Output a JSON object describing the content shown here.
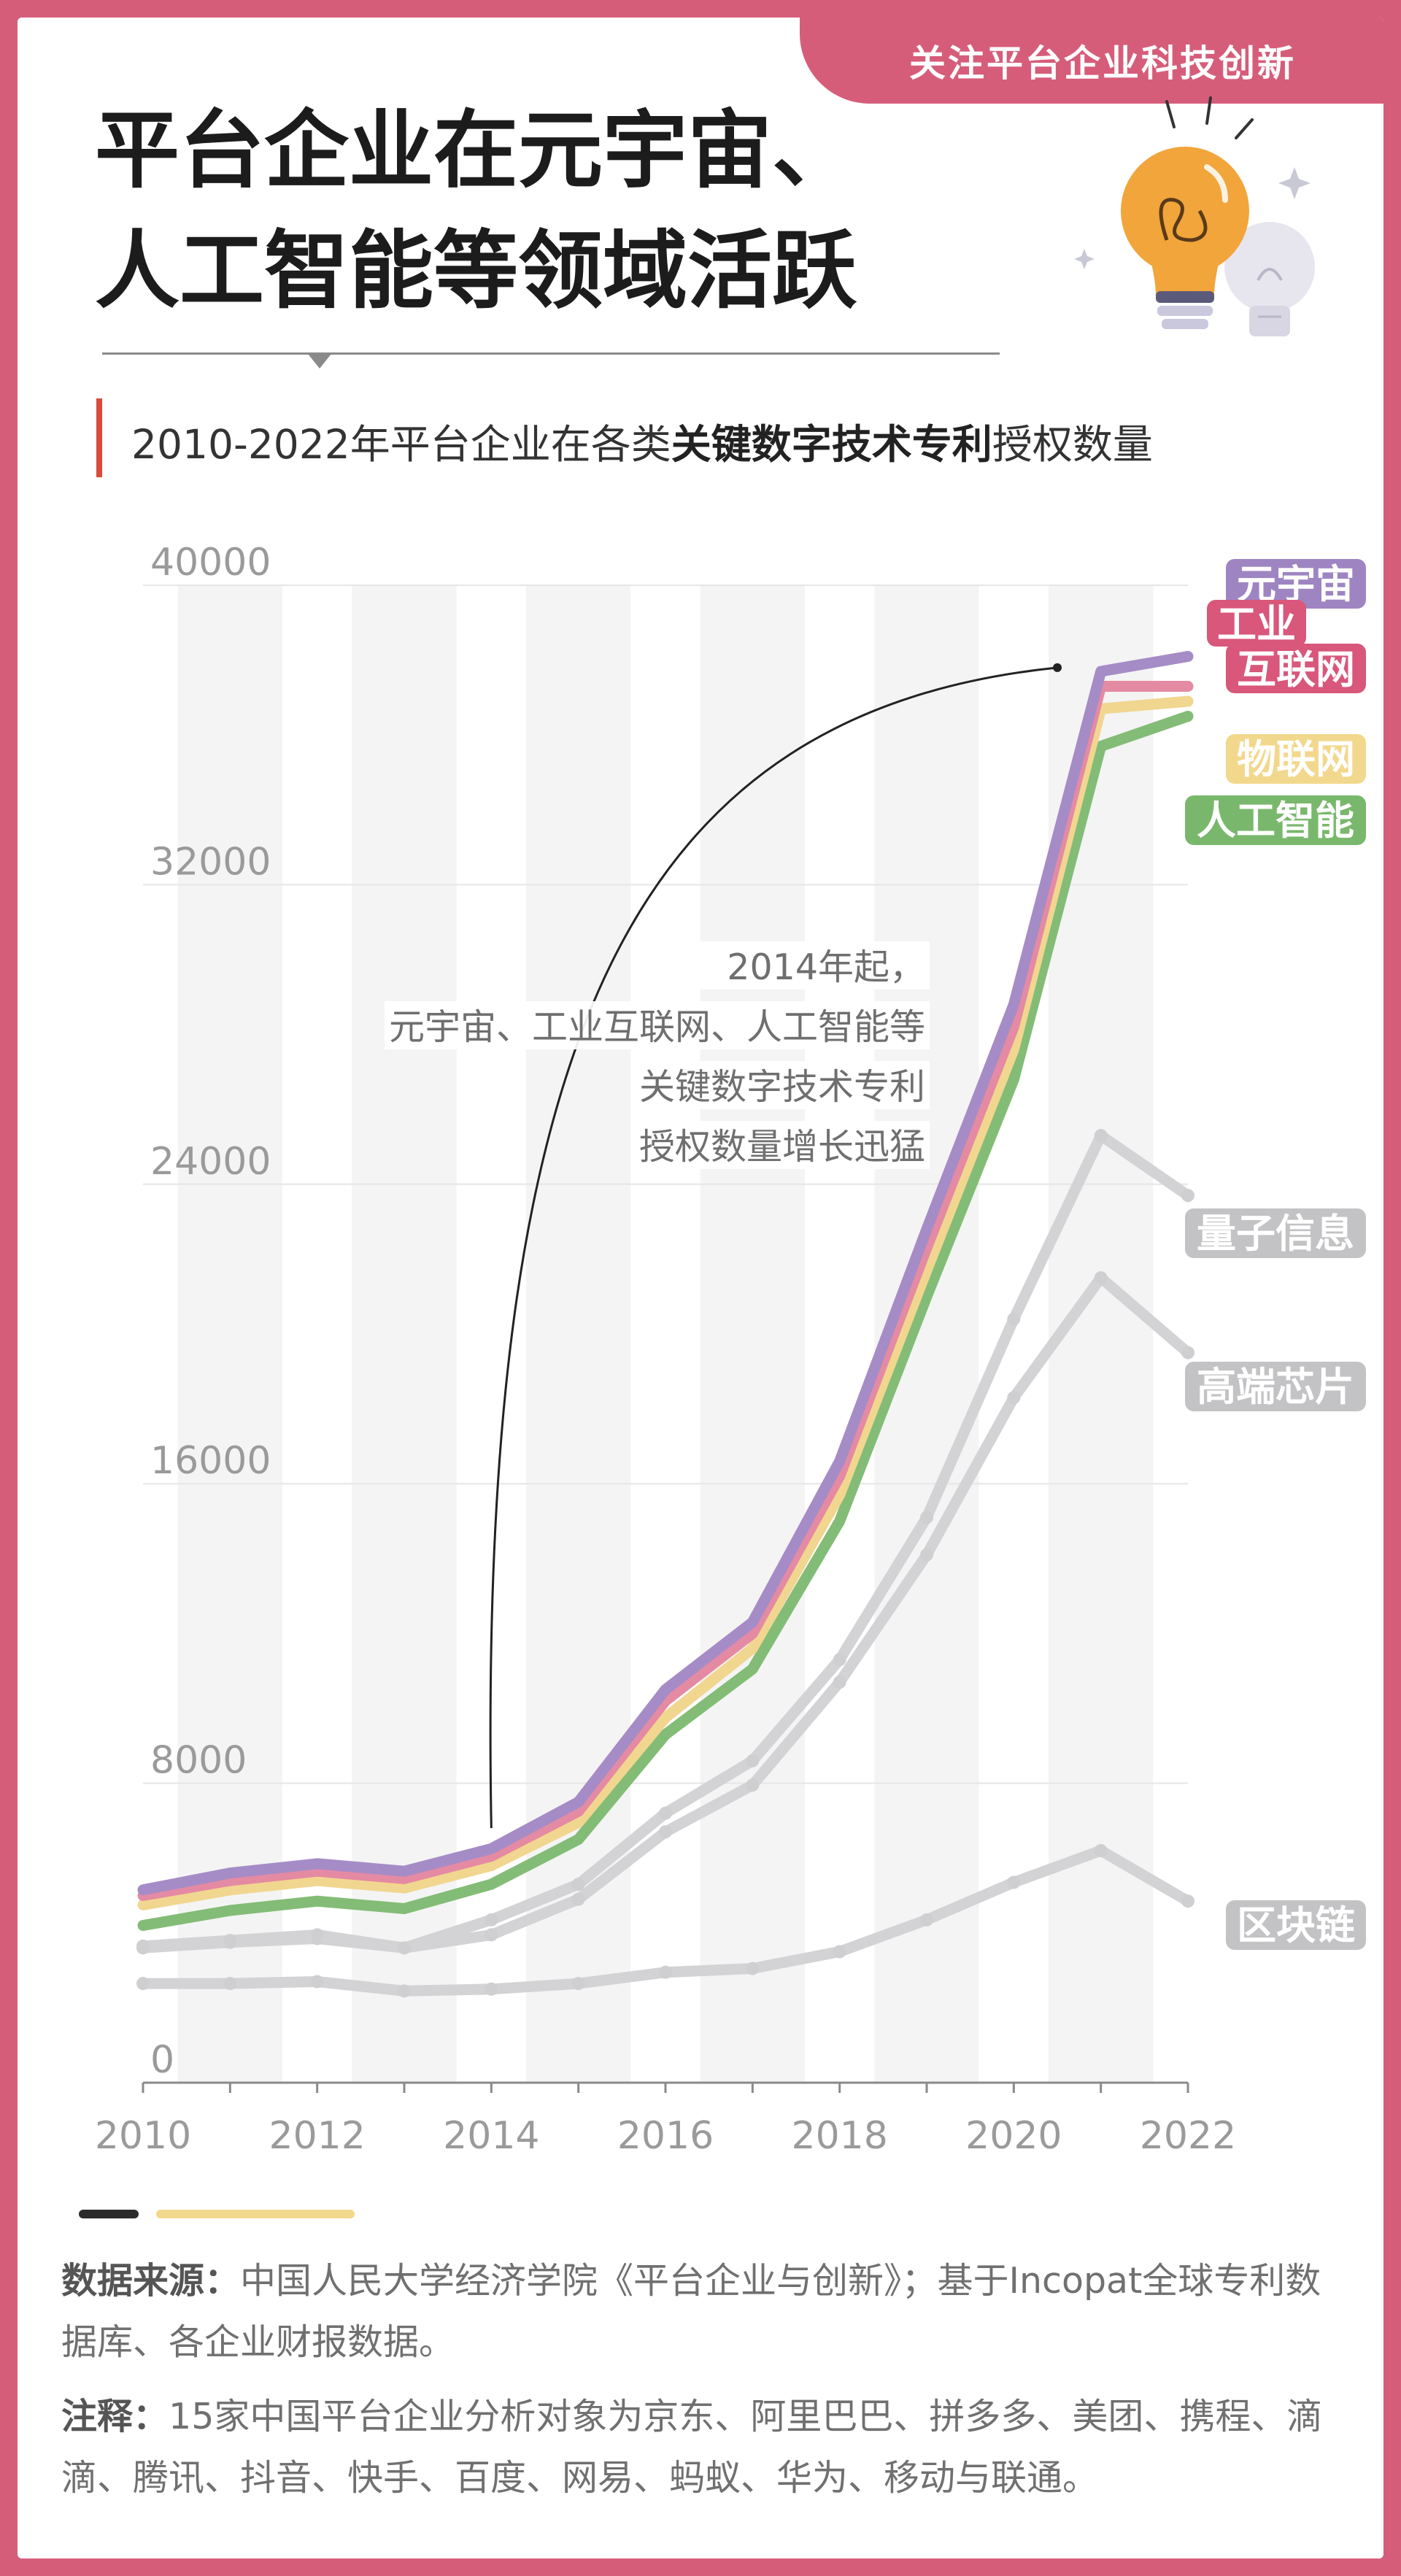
{
  "header": {
    "tag": "关注平台企业科技创新",
    "title_line1": "平台企业在元宇宙、",
    "title_line2": "人工智能等领域活跃",
    "subtitle_pre": "2010-2022年平台企业在各类",
    "subtitle_bold": "关键数字技术专利",
    "subtitle_post": "授权数量"
  },
  "chart_data": {
    "type": "line",
    "title": "2010-2022年平台企业在各类关键数字技术专利授权数量",
    "x": [
      2010,
      2011,
      2012,
      2013,
      2014,
      2015,
      2016,
      2017,
      2018,
      2019,
      2020,
      2021,
      2022
    ],
    "x_ticks": [
      "2010",
      "2012",
      "2014",
      "2016",
      "2018",
      "2020",
      "2022"
    ],
    "y_ticks": [
      "0",
      "8000",
      "16000",
      "24000",
      "32000",
      "40000"
    ],
    "ylim": [
      0,
      40000
    ],
    "xlim": [
      2010,
      2022
    ],
    "grid": "horizontal",
    "legend": "right",
    "series": [
      {
        "name": "元宇宙",
        "color": "#a58cc6",
        "label_bg": "#9e85c2",
        "values": [
          5150,
          5600,
          5850,
          5650,
          6250,
          7500,
          10500,
          12300,
          16600,
          22800,
          28800,
          37700,
          38100
        ]
      },
      {
        "name": "工业\n互联网",
        "color": "#e58aa3",
        "label_bg": "#d8577b",
        "values": [
          5000,
          5400,
          5650,
          5450,
          6050,
          7250,
          10200,
          12000,
          16200,
          22300,
          28200,
          37300,
          37300
        ]
      },
      {
        "name": "物联网",
        "color": "#f1d690",
        "label_bg": "#f2d88d",
        "values": [
          4750,
          5150,
          5400,
          5200,
          5800,
          6950,
          9750,
          11600,
          15700,
          21700,
          27600,
          36700,
          36900
        ]
      },
      {
        "name": "人工智能",
        "color": "#83bc76",
        "label_bg": "#79b86c",
        "values": [
          4200,
          4600,
          4850,
          4650,
          5300,
          6500,
          9300,
          11050,
          15000,
          21000,
          26800,
          35700,
          36500
        ]
      },
      {
        "name": "量子信息",
        "color": "#d3d3d5",
        "label_bg": "#c3c3c5",
        "values": [
          3650,
          3800,
          3950,
          3600,
          4350,
          5300,
          7200,
          8600,
          11300,
          15100,
          20400,
          25300,
          23700
        ]
      },
      {
        "name": "高端芯片",
        "color": "#d3d3d5",
        "label_bg": "#c3c3c5",
        "values": [
          3600,
          3750,
          3850,
          3600,
          3950,
          4900,
          6700,
          7950,
          10700,
          14100,
          18300,
          21500,
          19500
        ]
      },
      {
        "name": "区块链",
        "color": "#d3d3d5",
        "label_bg": "#c3c3c5",
        "values": [
          2650,
          2650,
          2700,
          2450,
          2500,
          2650,
          2950,
          3050,
          3500,
          4350,
          5350,
          6200,
          4850
        ]
      }
    ],
    "annotation": {
      "lines": [
        "2014年起，",
        "元宇宙、工业互联网、人工智能等",
        "关键数字技术专利",
        "授权数量增长迅猛"
      ],
      "arrow_from_x": 2014,
      "arrow_from_y": 6800,
      "arrow_to_x": 2020.5,
      "arrow_to_y": 37800
    }
  },
  "footer": {
    "source_label": "数据来源：",
    "source_text": "中国人民大学经济学院《平台企业与创新》；基于Incopat全球专利数据库、各企业财报数据。",
    "note_label": "注释：",
    "note_text": "15家中国平台企业分析对象为京东、阿里巴巴、拼多多、美团、携程、滴滴、腾讯、抖音、快手、百度、网易、蚂蚁、华为、移动与联通。"
  },
  "colors": {
    "frame": "#d65d7a",
    "subtitle_accent": "#d94a3c",
    "footer_bar_dark": "#2b2b2b",
    "footer_bar_light": "#f2d88d"
  }
}
